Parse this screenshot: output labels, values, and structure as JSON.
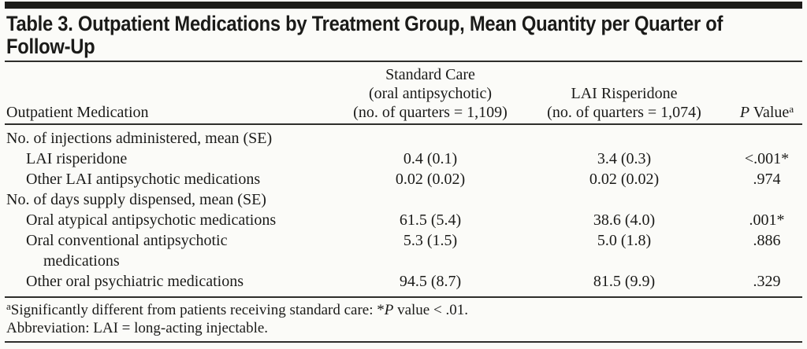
{
  "page": {
    "background": "#fbfbf8",
    "ink": "#1b1b19",
    "rule_color": "#2e2e2b"
  },
  "table": {
    "title_lines": [
      "Table 3. Outpatient Medications by Treatment Group, Mean Quantity per Quarter of",
      "Follow-Up"
    ],
    "header": {
      "col1": "Outpatient Medication",
      "col2_lines": [
        "Standard Care",
        "(oral antipsychotic)",
        "(no. of quarters = 1,109)"
      ],
      "col3_lines": [
        "LAI Risperidone",
        "(no. of quarters = 1,074)"
      ],
      "col4_italic": "P",
      "col4_text": " Value",
      "col4_sup": "a"
    },
    "rows": [
      {
        "label": "No. of injections administered, mean (SE)",
        "col2": "",
        "col3": "",
        "p": ""
      },
      {
        "label": "LAI risperidone",
        "col2": "0.4 (0.1)",
        "col3": "3.4 (0.3)",
        "p": "<.001*"
      },
      {
        "label": "Other LAI antipsychotic medications",
        "col2": "0.02 (0.02)",
        "col3": "0.02 (0.02)",
        "p": ".974"
      },
      {
        "label": "No. of days supply dispensed, mean (SE)",
        "col2": "",
        "col3": "",
        "p": ""
      },
      {
        "label": "Oral atypical antipsychotic medications",
        "col2": "61.5 (5.4)",
        "col3": "38.6 (4.0)",
        "p": ".001*"
      },
      {
        "label": "Oral conventional antipsychotic",
        "label2": "medications",
        "col2": "5.3 (1.5)",
        "col3": "5.0 (1.8)",
        "p": ".886"
      },
      {
        "label": "Other oral psychiatric medications",
        "col2": "94.5 (8.7)",
        "col3": "81.5 (9.9)",
        "p": ".329"
      }
    ],
    "footnotes": {
      "fn1_sup": "a",
      "fn1_pre": "Significantly different from patients receiving standard care: *",
      "fn1_italic": "P",
      "fn1_post": " value < .01.",
      "fn2": "Abbreviation: LAI = long-acting injectable."
    }
  }
}
